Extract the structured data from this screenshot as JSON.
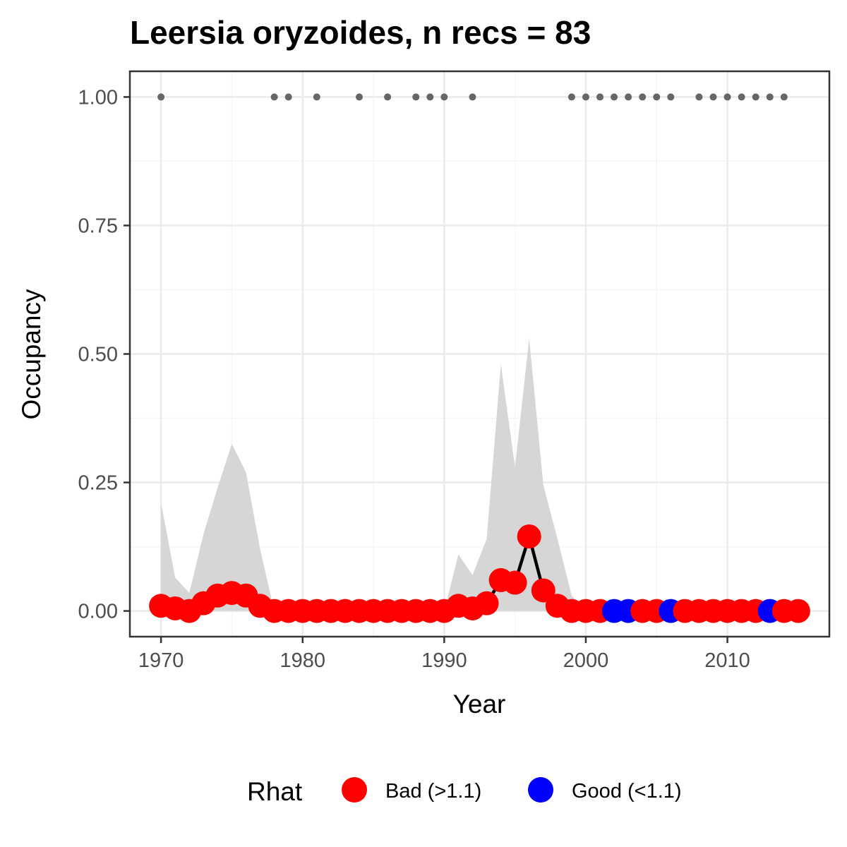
{
  "chart_data": {
    "type": "line",
    "title": "Leersia oryzoides, n recs = 83",
    "xlabel": "Year",
    "ylabel": "Occupancy",
    "xlim": [
      1967.8,
      2017.2
    ],
    "ylim": [
      -0.05,
      1.05
    ],
    "x_ticks": [
      1970,
      1980,
      1990,
      2000,
      2010
    ],
    "x_tick_labels": [
      "1970",
      "1980",
      "1990",
      "2000",
      "2010"
    ],
    "y_ticks": [
      0,
      0.25,
      0.5,
      0.75,
      1.0
    ],
    "y_tick_labels": [
      "0.00",
      "0.25",
      "0.50",
      "0.75",
      "1.00"
    ],
    "grid": true,
    "years": [
      1970,
      1971,
      1972,
      1973,
      1974,
      1975,
      1976,
      1977,
      1978,
      1979,
      1980,
      1981,
      1982,
      1983,
      1984,
      1985,
      1986,
      1987,
      1988,
      1989,
      1990,
      1991,
      1992,
      1993,
      1994,
      1995,
      1996,
      1997,
      1998,
      1999,
      2000,
      2001,
      2002,
      2003,
      2004,
      2005,
      2006,
      2007,
      2008,
      2009,
      2010,
      2011,
      2012,
      2013,
      2014,
      2015
    ],
    "occupancy": [
      0.01,
      0.005,
      0.0,
      0.015,
      0.03,
      0.035,
      0.03,
      0.01,
      0.0,
      0.0,
      0.0,
      0.0,
      0.0,
      0.0,
      0.0,
      0.0,
      0.0,
      0.0,
      0.0,
      0.0,
      0.0,
      0.01,
      0.005,
      0.015,
      0.06,
      0.055,
      0.145,
      0.04,
      0.01,
      0.0,
      0.0,
      0.0,
      0.0,
      0.0,
      0.0,
      0.0,
      0.0,
      0.0,
      0.0,
      0.0,
      0.0,
      0.0,
      0.0,
      0.0,
      0.0,
      0.0
    ],
    "lower": [
      0,
      0,
      0,
      0,
      0,
      0,
      0,
      0,
      0,
      0,
      0,
      0,
      0,
      0,
      0,
      0,
      0,
      0,
      0,
      0,
      0,
      0,
      0,
      0,
      0,
      0,
      0,
      0,
      0,
      0,
      0,
      0,
      0,
      0,
      0,
      0,
      0,
      0,
      0,
      0,
      0,
      0,
      0,
      0,
      0,
      0
    ],
    "upper": [
      0.21,
      0.065,
      0.035,
      0.15,
      0.24,
      0.325,
      0.27,
      0.12,
      0.0,
      0.0,
      0.0,
      0.0,
      0.0,
      0.0,
      0.0,
      0.0,
      0.0,
      0.0,
      0.0,
      0.0,
      0.0,
      0.11,
      0.07,
      0.14,
      0.48,
      0.28,
      0.53,
      0.245,
      0.14,
      0.03,
      0.0,
      0.0,
      0.0,
      0.0,
      0.0,
      0.0,
      0.0,
      0.0,
      0.0,
      0.0,
      0.0,
      0.0,
      0.0,
      0.0,
      0.0,
      0.0
    ],
    "rhat_good": [
      false,
      false,
      false,
      false,
      false,
      false,
      false,
      false,
      false,
      false,
      false,
      false,
      false,
      false,
      false,
      false,
      false,
      false,
      false,
      false,
      false,
      false,
      false,
      false,
      false,
      false,
      false,
      false,
      false,
      false,
      false,
      false,
      true,
      true,
      false,
      false,
      true,
      false,
      false,
      false,
      false,
      false,
      false,
      true,
      false,
      false
    ],
    "record_years": [
      1970,
      1978,
      1979,
      1981,
      1984,
      1986,
      1988,
      1989,
      1990,
      1992,
      1999,
      2000,
      2001,
      2002,
      2003,
      2004,
      2005,
      2006,
      2008,
      2009,
      2010,
      2011,
      2012,
      2013,
      2014
    ],
    "record_value": 1.0,
    "legend": {
      "title": "Rhat",
      "position": "bottom",
      "items": [
        {
          "label": "Bad (>1.1)",
          "color": "#ff0000"
        },
        {
          "label": "Good (<1.1)",
          "color": "#0000ff"
        }
      ]
    },
    "colors": {
      "bad": "#ff0000",
      "good": "#0000ff",
      "ribbon": "#d6d6d6",
      "line": "#000000",
      "record_dot": "#666666",
      "grid_major": "#ebebeb",
      "grid_minor": "#f5f5f5",
      "panel_border": "#333333"
    }
  }
}
